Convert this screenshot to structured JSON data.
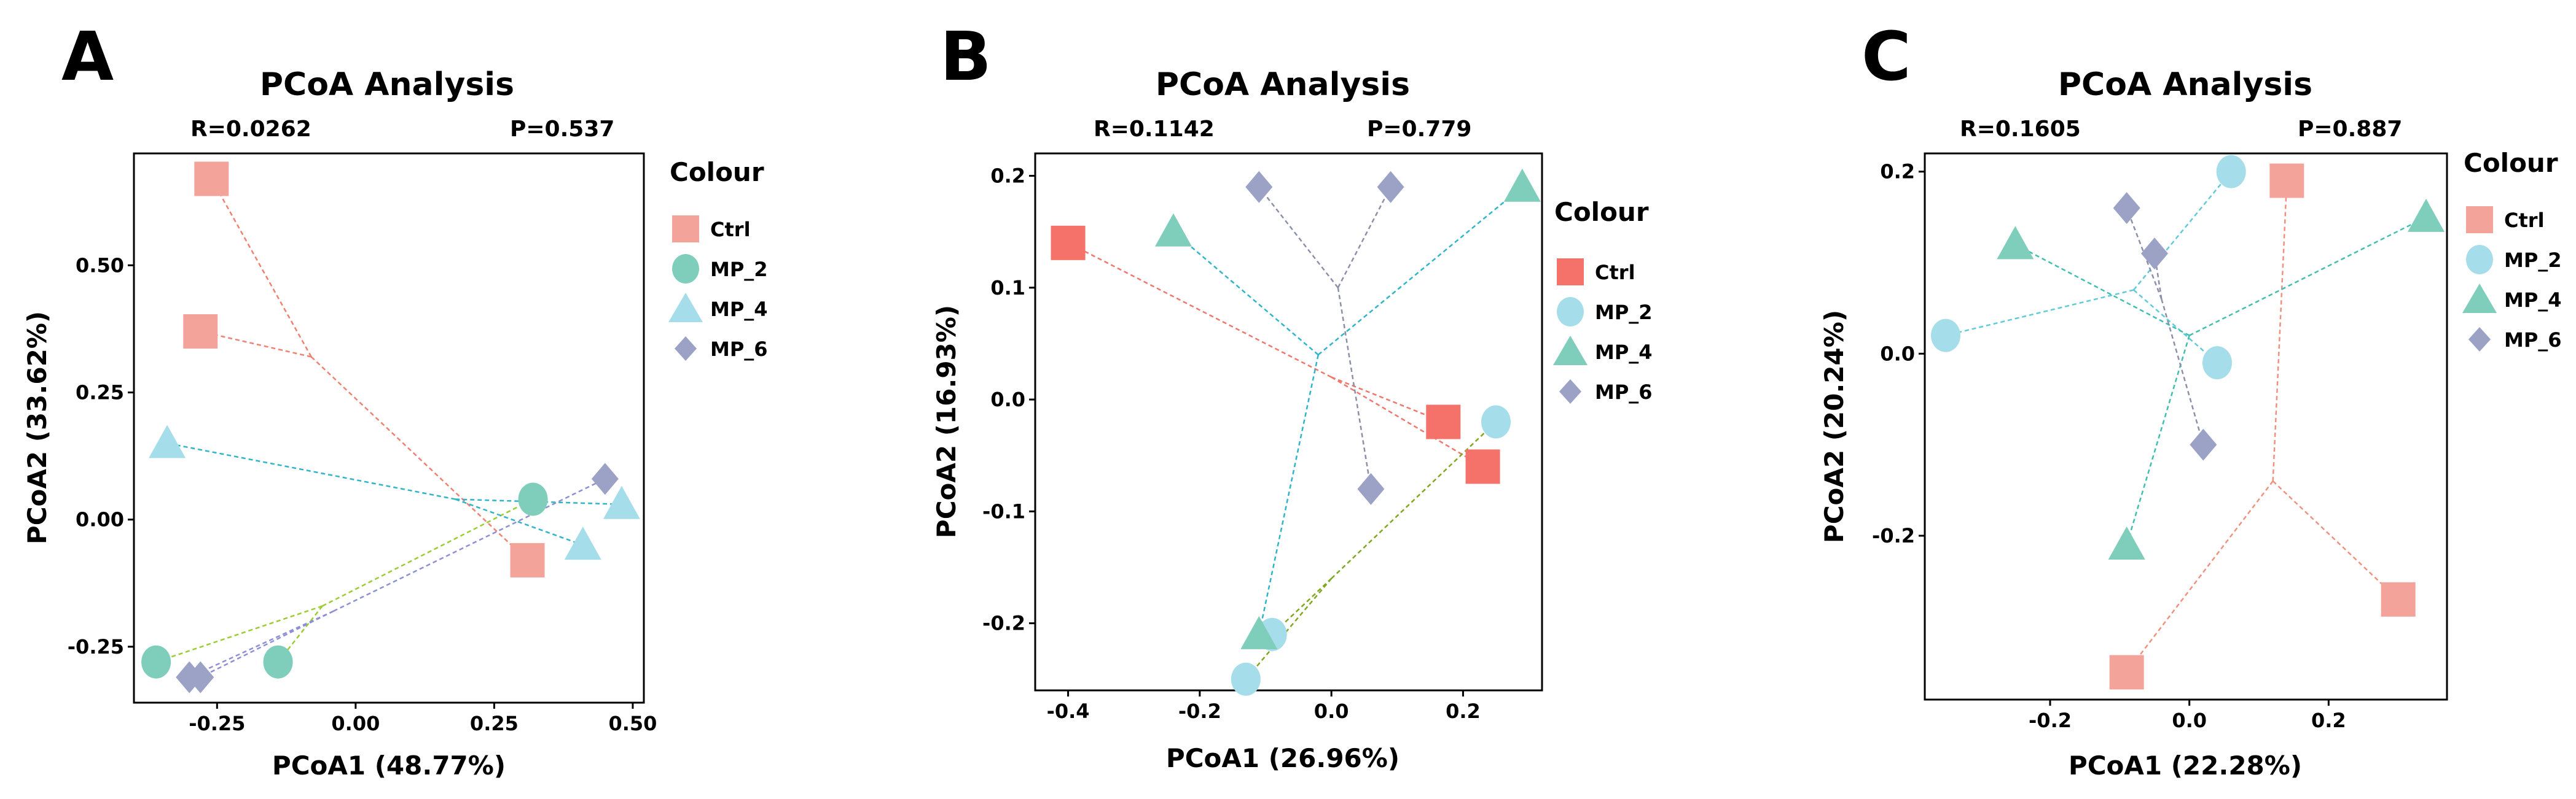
{
  "colors": {
    "Ctrl": "#F4A39A",
    "MP_2": "#7FCDBB",
    "MP_4": "#A6DDEB",
    "MP_6": "#9BA2C6"
  },
  "chart_data": [
    {
      "type": "scatter",
      "panel": "A",
      "title": "PCoA Analysis",
      "R": "R=0.0262",
      "P": "P=0.537",
      "xlabel": "PCoA1 (48.77%)",
      "ylabel": "PCoA2 (33.62%)",
      "xlim": [
        -0.4,
        0.52
      ],
      "ylim": [
        -0.36,
        0.72
      ],
      "xticks": [
        -0.25,
        0.0,
        0.25,
        0.5
      ],
      "xtick_labels": [
        "-0.25",
        "0.00",
        "0.25",
        "0.50"
      ],
      "yticks": [
        -0.25,
        0.0,
        0.25,
        0.5
      ],
      "ytick_labels": [
        "-0.25",
        "0.00",
        "0.25",
        "0.50"
      ],
      "legend_title": "Colour",
      "legend_position": "top-right outside",
      "series": [
        {
          "name": "Ctrl",
          "marker": "square",
          "points": [
            [
              -0.26,
              0.67
            ],
            [
              -0.28,
              0.37
            ],
            [
              0.31,
              -0.08
            ]
          ],
          "centroid": [
            -0.08,
            0.32
          ],
          "line_color": "#F08070"
        },
        {
          "name": "MP_2",
          "marker": "circle",
          "points": [
            [
              0.32,
              0.04
            ],
            [
              -0.36,
              -0.28
            ],
            [
              -0.14,
              -0.28
            ]
          ],
          "centroid": [
            -0.06,
            -0.17
          ],
          "line_color": "#9ACD32"
        },
        {
          "name": "MP_4",
          "marker": "triangle",
          "points": [
            [
              -0.34,
              0.15
            ],
            [
              0.41,
              -0.05
            ],
            [
              0.48,
              0.03
            ]
          ],
          "centroid": [
            0.18,
            0.04
          ],
          "line_color": "#2FB5C7"
        },
        {
          "name": "MP_6",
          "marker": "diamond",
          "points": [
            [
              0.45,
              0.08
            ],
            [
              -0.28,
              -0.31
            ],
            [
              -0.3,
              -0.31
            ]
          ],
          "centroid": [
            -0.04,
            -0.18
          ],
          "line_color": "#8C8FD6"
        }
      ]
    },
    {
      "type": "scatter",
      "panel": "B",
      "title": "PCoA Analysis",
      "R": "R=0.1142",
      "P": "P=0.779",
      "xlabel": "PCoA1 (26.96%)",
      "ylabel": "PCoA2 (16.93%)",
      "xlim": [
        -0.45,
        0.32
      ],
      "ylim": [
        -0.26,
        0.22
      ],
      "xticks": [
        -0.4,
        -0.2,
        0.0,
        0.2
      ],
      "xtick_labels": [
        "-0.4",
        "-0.2",
        "0.0",
        "0.2"
      ],
      "yticks": [
        -0.2,
        -0.1,
        0.0,
        0.1,
        0.2
      ],
      "ytick_labels": [
        "-0.2",
        "-0.1",
        "0.0",
        "0.1",
        "0.2"
      ],
      "legend_title": "Colour",
      "legend_position": "right outside",
      "series": [
        {
          "name": "Ctrl",
          "marker": "square",
          "points": [
            [
              -0.4,
              0.14
            ],
            [
              0.17,
              -0.02
            ],
            [
              0.23,
              -0.06
            ]
          ],
          "centroid": [
            0.0,
            0.02
          ],
          "line_color": "#F0776B",
          "marker_color": "#F4726A"
        },
        {
          "name": "MP_2",
          "marker": "circle",
          "points": [
            [
              0.25,
              -0.02
            ],
            [
              -0.09,
              -0.21
            ],
            [
              -0.13,
              -0.25
            ]
          ],
          "centroid": [
            0.0,
            -0.16
          ],
          "line_color": "#7FA81F",
          "marker_color": "#A6DDEB"
        },
        {
          "name": "MP_4",
          "marker": "triangle",
          "points": [
            [
              -0.24,
              0.15
            ],
            [
              0.29,
              0.19
            ],
            [
              -0.11,
              -0.21
            ]
          ],
          "centroid": [
            -0.02,
            0.04
          ],
          "line_color": "#2FB5C7",
          "marker_color": "#7FCDBB"
        },
        {
          "name": "MP_6",
          "marker": "diamond",
          "points": [
            [
              -0.11,
              0.19
            ],
            [
              0.09,
              0.19
            ],
            [
              0.06,
              -0.08
            ]
          ],
          "centroid": [
            0.01,
            0.1
          ],
          "line_color": "#8C8FA8",
          "marker_color": "#9BA2C6"
        }
      ]
    },
    {
      "type": "scatter",
      "panel": "C",
      "title": "PCoA Analysis",
      "R": "R=0.1605",
      "P": "P=0.887",
      "xlabel": "PCoA1 (22.28%)",
      "ylabel": "PCoA2 (20.24%)",
      "xlim": [
        -0.38,
        0.37
      ],
      "ylim": [
        -0.38,
        0.22
      ],
      "xticks": [
        -0.2,
        0.0,
        0.2
      ],
      "xtick_labels": [
        "-0.2",
        "0.0",
        "0.2"
      ],
      "yticks": [
        -0.2,
        0.0,
        0.2
      ],
      "ytick_labels": [
        "-0.2",
        "0.0",
        "0.2"
      ],
      "legend_title": "Colour",
      "legend_position": "top-right outside",
      "series": [
        {
          "name": "Ctrl",
          "marker": "square",
          "points": [
            [
              0.14,
              0.19
            ],
            [
              0.3,
              -0.27
            ],
            [
              -0.09,
              -0.35
            ]
          ],
          "centroid": [
            0.12,
            -0.14
          ],
          "line_color": "#F0907E"
        },
        {
          "name": "MP_2",
          "marker": "circle",
          "points": [
            [
              0.06,
              0.2
            ],
            [
              -0.35,
              0.02
            ],
            [
              0.04,
              -0.01
            ]
          ],
          "centroid": [
            -0.08,
            0.07
          ],
          "line_color": "#5FCBD8",
          "marker_color": "#A6DDEB"
        },
        {
          "name": "MP_4",
          "marker": "triangle",
          "points": [
            [
              -0.25,
              0.12
            ],
            [
              0.34,
              0.15
            ],
            [
              -0.09,
              -0.21
            ]
          ],
          "centroid": [
            0.0,
            0.02
          ],
          "line_color": "#3FBFB0",
          "marker_color": "#7FCDBB"
        },
        {
          "name": "MP_6",
          "marker": "diamond",
          "points": [
            [
              -0.09,
              0.16
            ],
            [
              -0.05,
              0.11
            ],
            [
              0.02,
              -0.1
            ]
          ],
          "centroid": [
            -0.04,
            0.06
          ],
          "line_color": "#8C8FA8",
          "marker_color": "#9BA2C6"
        }
      ]
    }
  ]
}
